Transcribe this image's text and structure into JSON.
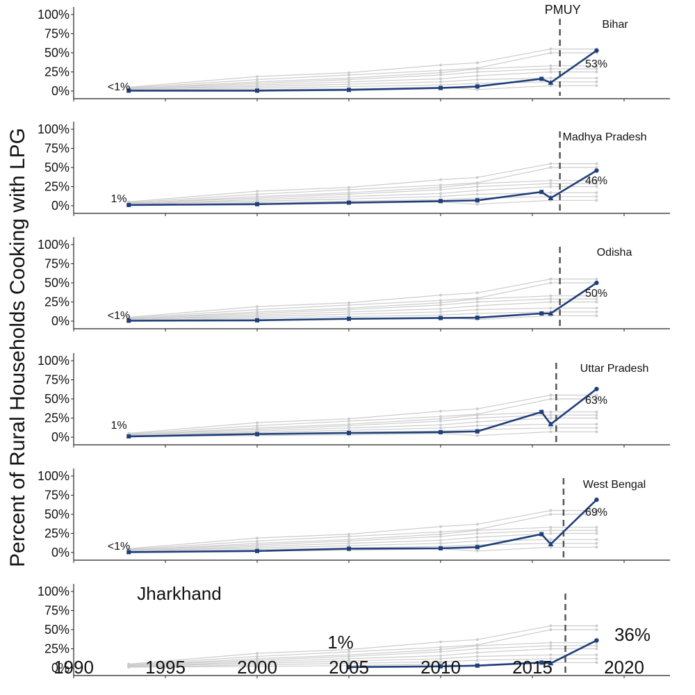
{
  "chart_data": {
    "type": "line",
    "ylabel": "Percent of Rural Households Cooking with LPG",
    "ylim": [
      0,
      100
    ],
    "yticks": [
      "0%",
      "25%",
      "50%",
      "75%",
      "100%"
    ],
    "xlim": [
      1990,
      2022.5
    ],
    "xticks": [
      "1990",
      "1995",
      "2000",
      "2005",
      "2010",
      "2015",
      "2020"
    ],
    "policy_label": "PMUY",
    "colors": {
      "highlight": "#1f3f7a",
      "background": "#cccccc",
      "policy_line": "#555555"
    },
    "background_series": [
      {
        "name": "bg1",
        "x": [
          1993,
          2000,
          2005,
          2010,
          2012,
          2016,
          2018.5
        ],
        "values": [
          5,
          19,
          24,
          34,
          37,
          55,
          55
        ]
      },
      {
        "name": "bg2",
        "x": [
          1993,
          2000,
          2005,
          2010,
          2012,
          2016,
          2018.5
        ],
        "values": [
          4,
          15,
          21,
          27,
          30,
          50,
          50
        ]
      },
      {
        "name": "bg3",
        "x": [
          1993,
          2000,
          2005,
          2010,
          2012,
          2016,
          2018.5
        ],
        "values": [
          3,
          12,
          17,
          24,
          29,
          33,
          33
        ]
      },
      {
        "name": "bg4",
        "x": [
          1993,
          2000,
          2005,
          2010,
          2012,
          2016,
          2018.5
        ],
        "values": [
          3,
          10,
          15,
          21,
          25,
          29,
          29
        ]
      },
      {
        "name": "bg5",
        "x": [
          1993,
          2000,
          2005,
          2010,
          2012,
          2016,
          2018.5
        ],
        "values": [
          2,
          8,
          12,
          16,
          20,
          25,
          25
        ]
      },
      {
        "name": "bg6",
        "x": [
          1993,
          2000,
          2005,
          2010,
          2012,
          2016,
          2018.5
        ],
        "values": [
          2,
          6,
          9,
          12,
          15,
          17,
          17
        ]
      },
      {
        "name": "bg7",
        "x": [
          1993,
          2000,
          2005,
          2010,
          2012,
          2016,
          2018.5
        ],
        "values": [
          1,
          4,
          6,
          8,
          10,
          12,
          12
        ]
      },
      {
        "name": "bg8",
        "x": [
          1993,
          2000,
          2005,
          2010,
          2012,
          2016,
          2018.5
        ],
        "values": [
          1,
          2,
          3,
          5,
          2,
          7,
          7
        ]
      }
    ],
    "panels": [
      {
        "name": "Bihar",
        "x": [
          1993,
          2000,
          2005,
          2010,
          2012,
          2015.5,
          2016,
          2018.5
        ],
        "values": [
          0.5,
          0.5,
          1.5,
          4,
          6,
          16,
          11,
          53
        ],
        "start_label": "<1%",
        "end_label": "53%",
        "pmuy_x": 2016.5
      },
      {
        "name": "Madhya Pradesh",
        "x": [
          1993,
          2000,
          2005,
          2010,
          2012,
          2015.5,
          2016,
          2018.5
        ],
        "values": [
          1,
          2,
          4,
          6,
          7,
          18,
          10,
          46
        ],
        "start_label": "1%",
        "end_label": "46%",
        "pmuy_x": 2016.5
      },
      {
        "name": "Odisha",
        "x": [
          1993,
          2000,
          2005,
          2010,
          2012,
          2015.5,
          2016,
          2018.5
        ],
        "values": [
          0.5,
          1,
          3,
          4,
          4.5,
          10,
          10,
          50
        ],
        "start_label": "<1%",
        "end_label": "50%",
        "pmuy_x": 2016.5
      },
      {
        "name": "Uttar Pradesh",
        "x": [
          1993,
          2000,
          2005,
          2010,
          2012,
          2015.5,
          2016,
          2018.5
        ],
        "values": [
          1,
          4,
          5.5,
          6.5,
          7.5,
          33,
          17,
          63
        ],
        "start_label": "1%",
        "end_label": "63%",
        "pmuy_x": 2016.3
      },
      {
        "name": "West Bengal",
        "x": [
          1993,
          2000,
          2005,
          2010,
          2012,
          2015.5,
          2016,
          2018.5
        ],
        "values": [
          0.5,
          2,
          5,
          5.5,
          7,
          24,
          11,
          69
        ],
        "start_label": "<1%",
        "end_label": "69%",
        "pmuy_x": 2016.7
      },
      {
        "name": "Jharkhand",
        "x": [
          2005,
          2010,
          2012,
          2015.5,
          2016,
          2018.5
        ],
        "values": [
          1,
          2,
          3,
          7,
          6,
          36
        ],
        "start_label": "1%",
        "end_label": "36%",
        "pmuy_x": 2016.8
      }
    ]
  }
}
